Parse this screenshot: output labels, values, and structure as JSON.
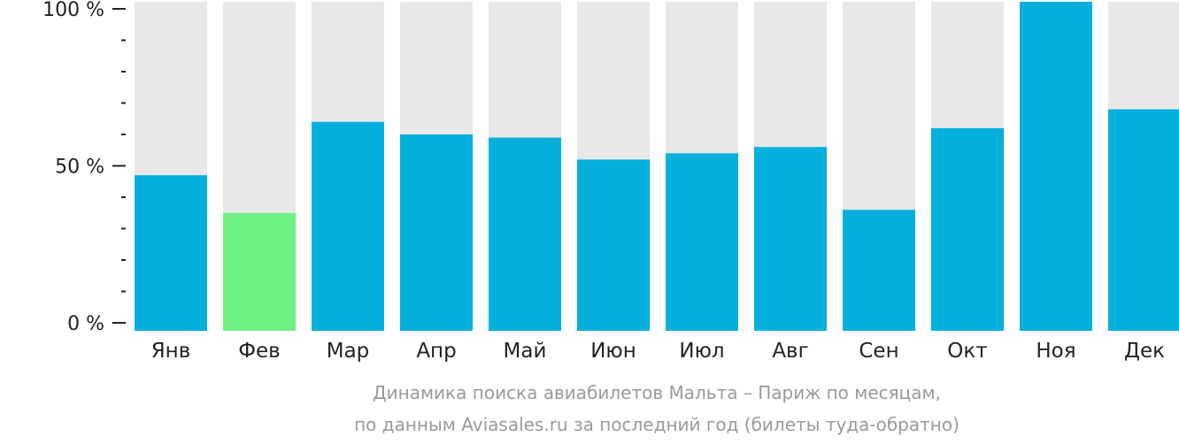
{
  "chart_data": {
    "type": "bar",
    "categories": [
      "Янв",
      "Фев",
      "Мар",
      "Апр",
      "Май",
      "Июн",
      "Июл",
      "Авг",
      "Сен",
      "Окт",
      "Ноя",
      "Дек"
    ],
    "values": [
      47,
      35,
      64,
      60,
      59,
      52,
      54,
      56,
      36,
      62,
      105,
      68
    ],
    "highlight_index": 1,
    "yaxis": {
      "tick_labels": [
        "0 %",
        "50 %",
        "100 %"
      ],
      "tick_values": [
        0,
        50,
        100
      ],
      "minor_ticks": [
        10,
        20,
        30,
        40,
        60,
        70,
        80,
        90
      ]
    },
    "ylim": [
      0,
      105
    ],
    "colors": {
      "bar": "#03b0dc",
      "highlight": "#6ef085",
      "background_bar": "#e8e8e8",
      "axis_text": "#222222",
      "caption": "#9a9a9a"
    }
  },
  "caption": {
    "line1": "Динамика поиска авиабилетов Мальта – Париж по месяцам,",
    "line2": "по данным Aviasales.ru за последний год (билеты туда-обратно)"
  }
}
